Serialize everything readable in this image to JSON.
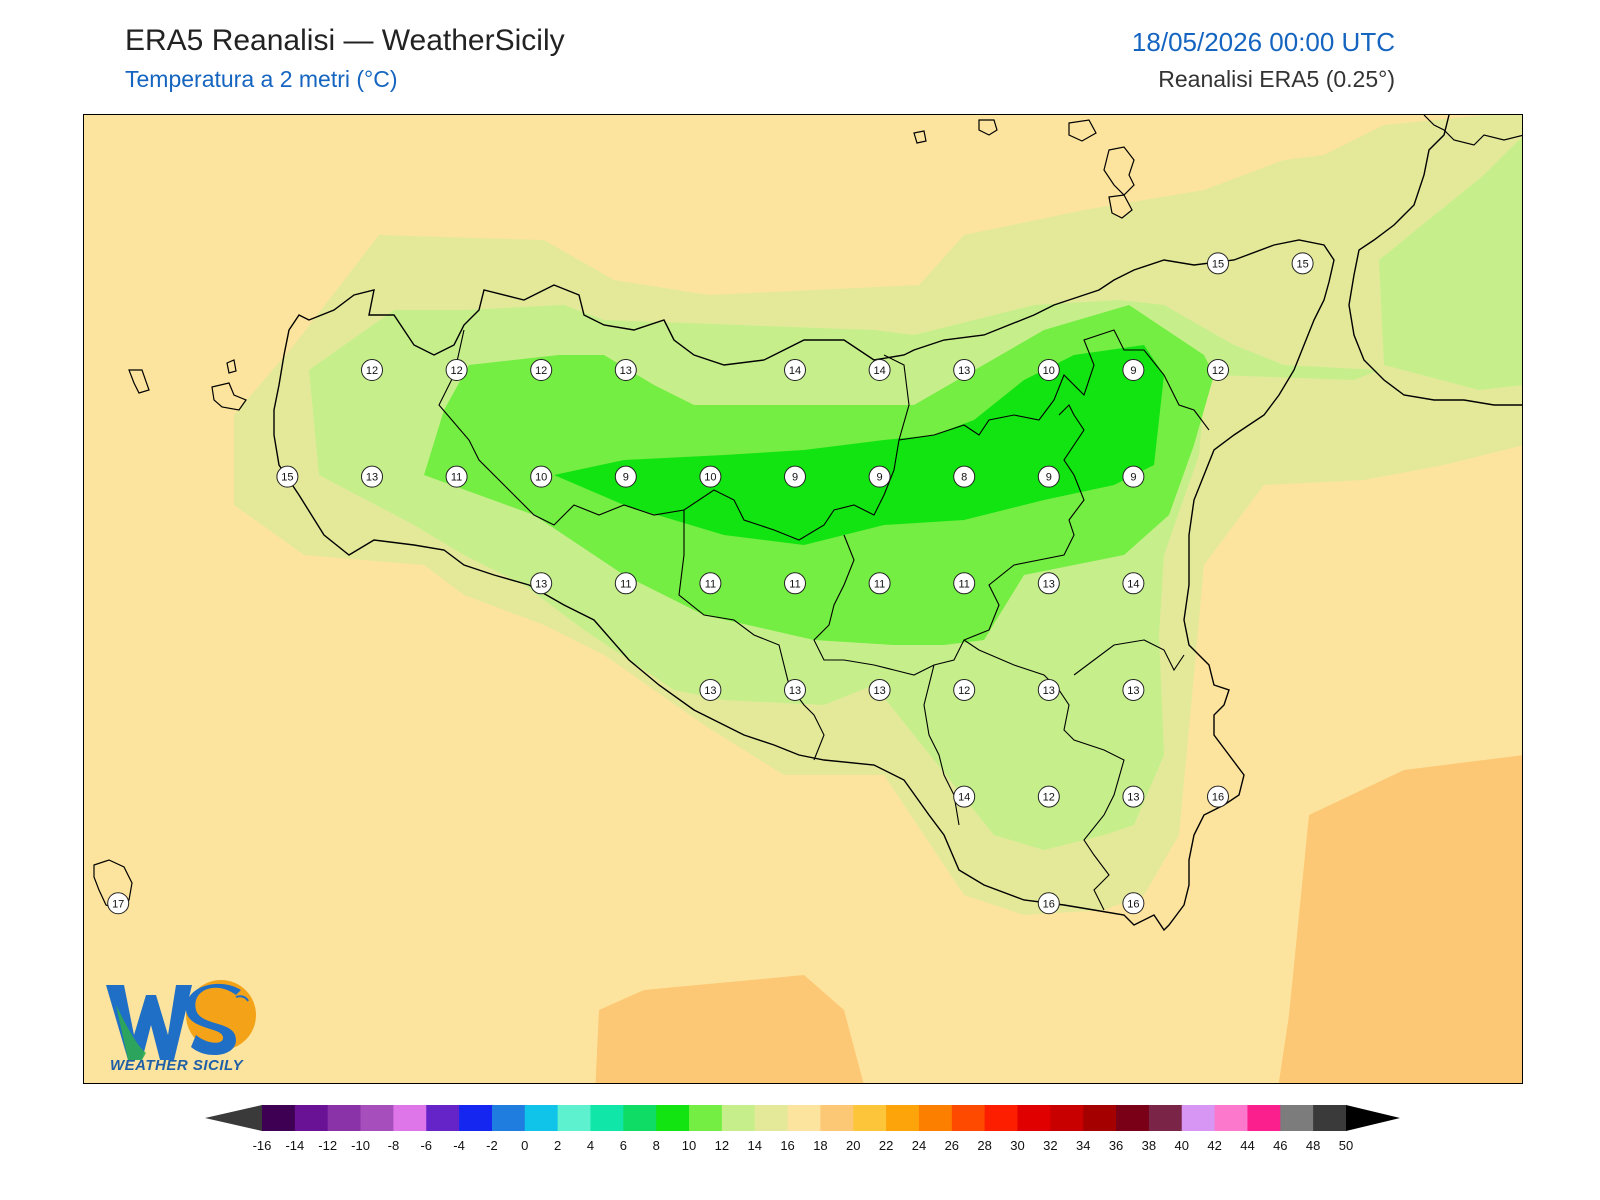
{
  "header": {
    "title": "ERA5 Reanalisi — WeatherSicily",
    "subtitle": "Temperatura a 2 metri (°C)",
    "datetime": "18/05/2026 00:00 UTC",
    "source": "Reanalisi ERA5 (0.25°)"
  },
  "logo": {
    "text": "WEATHER SICILY",
    "icon": "ws-logo-icon"
  },
  "colors": {
    "sea_base": "#fde49e",
    "band_14_16": "#e4e99a",
    "band_12_14": "#c6ef8c",
    "band_10_12": "#74ee42",
    "band_8_10": "#12e412",
    "band_18_20": "#fcc875",
    "coastline": "#000000"
  },
  "colorbar": {
    "labels": [
      "-16",
      "-14",
      "-12",
      "-10",
      "-8",
      "-6",
      "-4",
      "-2",
      "0",
      "2",
      "4",
      "6",
      "8",
      "10",
      "12",
      "14",
      "16",
      "18",
      "20",
      "22",
      "24",
      "26",
      "28",
      "30",
      "32",
      "34",
      "36",
      "38",
      "40",
      "42",
      "44",
      "46",
      "48",
      "50"
    ],
    "colors": [
      "#3d0052",
      "#6a1296",
      "#8a33a8",
      "#a64fbc",
      "#de76ea",
      "#6424c8",
      "#1426f0",
      "#1f7ddf",
      "#0fc4e8",
      "#5ef1d0",
      "#0fe6a8",
      "#0fdc64",
      "#12e412",
      "#74ee42",
      "#c6ef8c",
      "#e4e99a",
      "#fde49e",
      "#fcc875",
      "#fdc63a",
      "#fda40a",
      "#fd7f00",
      "#fd4a00",
      "#fd1e00",
      "#e10000",
      "#c80000",
      "#a50000",
      "#7a0018",
      "#7a2448",
      "#d896f4",
      "#fc78cc",
      "#fa1f8c",
      "#7c7c7c",
      "#3a3a3a"
    ]
  },
  "points": [
    {
      "v": "12",
      "lat": 38.2,
      "lon": 12.5
    },
    {
      "v": "12",
      "lat": 38.2,
      "lon": 12.75
    },
    {
      "v": "12",
      "lat": 38.2,
      "lon": 13.0
    },
    {
      "v": "13",
      "lat": 38.2,
      "lon": 13.25
    },
    {
      "v": "14",
      "lat": 38.2,
      "lon": 13.75
    },
    {
      "v": "14",
      "lat": 38.2,
      "lon": 14.0
    },
    {
      "v": "13",
      "lat": 38.2,
      "lon": 14.25
    },
    {
      "v": "10",
      "lat": 38.2,
      "lon": 14.5
    },
    {
      "v": "9",
      "lat": 38.2,
      "lon": 14.75
    },
    {
      "v": "12",
      "lat": 38.2,
      "lon": 15.0
    },
    {
      "v": "15",
      "lat": 38.5,
      "lon": 15.0
    },
    {
      "v": "15",
      "lat": 38.5,
      "lon": 15.25
    },
    {
      "v": "15",
      "lat": 37.9,
      "lon": 12.25
    },
    {
      "v": "13",
      "lat": 37.9,
      "lon": 12.5
    },
    {
      "v": "11",
      "lat": 37.9,
      "lon": 12.75
    },
    {
      "v": "10",
      "lat": 37.9,
      "lon": 13.0
    },
    {
      "v": "9",
      "lat": 37.9,
      "lon": 13.25
    },
    {
      "v": "10",
      "lat": 37.9,
      "lon": 13.5
    },
    {
      "v": "9",
      "lat": 37.9,
      "lon": 13.75
    },
    {
      "v": "9",
      "lat": 37.9,
      "lon": 14.0
    },
    {
      "v": "8",
      "lat": 37.9,
      "lon": 14.25
    },
    {
      "v": "9",
      "lat": 37.9,
      "lon": 14.5
    },
    {
      "v": "9",
      "lat": 37.9,
      "lon": 14.75
    },
    {
      "v": "13",
      "lat": 37.6,
      "lon": 13.0
    },
    {
      "v": "11",
      "lat": 37.6,
      "lon": 13.25
    },
    {
      "v": "11",
      "lat": 37.6,
      "lon": 13.5
    },
    {
      "v": "11",
      "lat": 37.6,
      "lon": 13.75
    },
    {
      "v": "11",
      "lat": 37.6,
      "lon": 14.0
    },
    {
      "v": "11",
      "lat": 37.6,
      "lon": 14.25
    },
    {
      "v": "13",
      "lat": 37.6,
      "lon": 14.5
    },
    {
      "v": "14",
      "lat": 37.6,
      "lon": 14.75
    },
    {
      "v": "13",
      "lat": 37.3,
      "lon": 13.5
    },
    {
      "v": "13",
      "lat": 37.3,
      "lon": 13.75
    },
    {
      "v": "13",
      "lat": 37.3,
      "lon": 14.0
    },
    {
      "v": "12",
      "lat": 37.3,
      "lon": 14.25
    },
    {
      "v": "13",
      "lat": 37.3,
      "lon": 14.5
    },
    {
      "v": "13",
      "lat": 37.3,
      "lon": 14.75
    },
    {
      "v": "14",
      "lat": 37.0,
      "lon": 14.25
    },
    {
      "v": "12",
      "lat": 37.0,
      "lon": 14.5
    },
    {
      "v": "13",
      "lat": 37.0,
      "lon": 14.75
    },
    {
      "v": "16",
      "lat": 37.0,
      "lon": 15.0
    },
    {
      "v": "16",
      "lat": 36.7,
      "lon": 14.5
    },
    {
      "v": "16",
      "lat": 36.7,
      "lon": 14.75
    },
    {
      "v": "17",
      "lat": 36.7,
      "lon": 11.75
    }
  ]
}
